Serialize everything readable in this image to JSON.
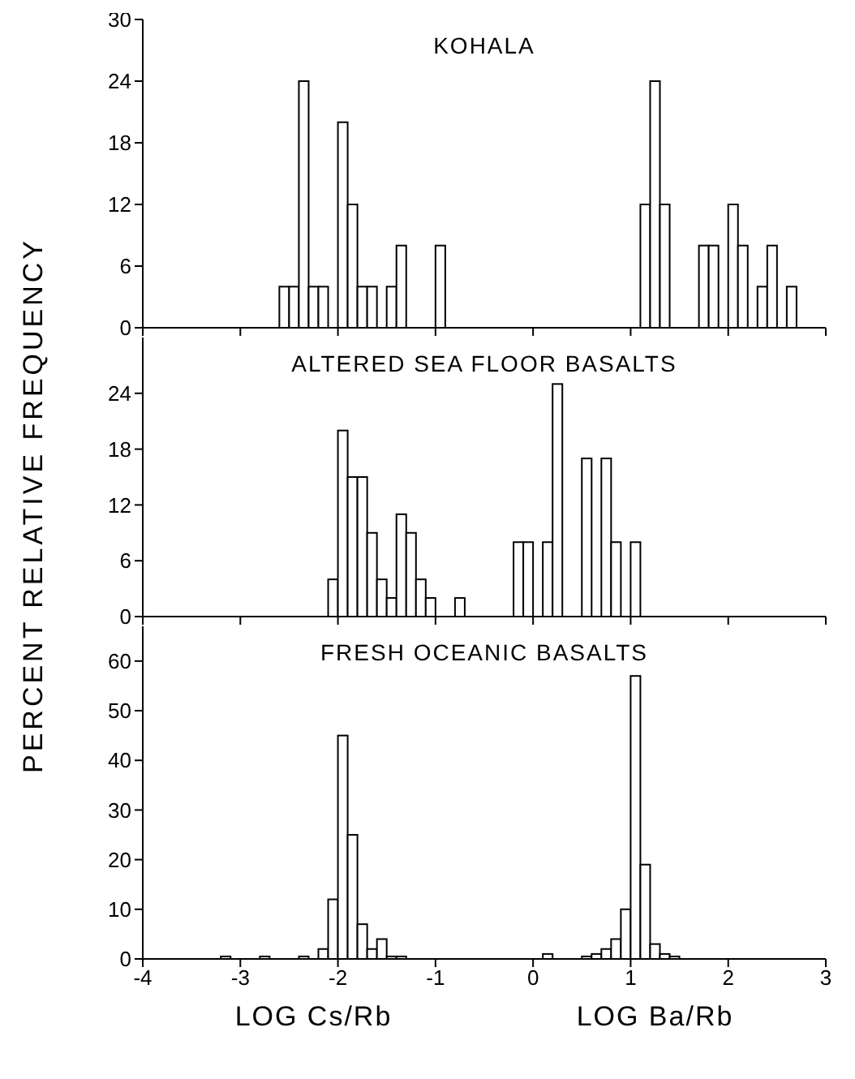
{
  "chart_data": [
    {
      "type": "histogram",
      "title": "KOHALA",
      "color": "#000000",
      "xlim": [
        -4,
        3
      ],
      "xticks": [
        -4,
        -3,
        -2,
        -1,
        0,
        1,
        2,
        3
      ],
      "ylim": [
        0,
        30
      ],
      "yticks": [
        0,
        6,
        12,
        18,
        24,
        30
      ],
      "tick_labels": "y",
      "bins": [
        -2.6,
        -2.5,
        -2.4,
        -2.3,
        -2.2,
        -2.1,
        -2.0,
        -1.9,
        -1.8,
        -1.7,
        -1.6,
        -1.5,
        -1.4,
        -1.3,
        -1.2,
        -1.1,
        -1.0,
        -0.9,
        -0.8,
        -0.7,
        -0.6,
        -0.5,
        -0.4,
        -0.3,
        -0.2,
        -0.1,
        0.0,
        0.1,
        0.2,
        0.3,
        0.4,
        0.5,
        0.6,
        0.7,
        0.8,
        0.9,
        1.0,
        1.1,
        1.2,
        1.3,
        1.4,
        1.5,
        1.6,
        1.7,
        1.8,
        1.9,
        2.0,
        2.1,
        2.2,
        2.3,
        2.4,
        2.5,
        2.6,
        2.7
      ],
      "values": [
        4,
        4,
        24,
        4,
        4,
        0,
        20,
        12,
        4,
        4,
        0,
        4,
        8,
        0,
        0,
        0,
        8,
        0,
        0,
        0,
        0,
        0,
        0,
        0,
        0,
        0,
        0,
        0,
        0,
        0,
        0,
        0,
        0,
        0,
        0,
        0,
        0,
        12,
        24,
        12,
        0,
        0,
        0,
        8,
        8,
        0,
        12,
        8,
        0,
        4,
        8,
        0,
        4
      ]
    },
    {
      "type": "histogram",
      "title": "ALTERED SEA FLOOR BASALTS",
      "ylabel": "PERCENT RELATIVE FREQUENCY",
      "color": "#000000",
      "xlim": [
        -4,
        3
      ],
      "xticks": [
        -4,
        -3,
        -2,
        -1,
        0,
        1,
        2,
        3
      ],
      "ylim": [
        0,
        30
      ],
      "yticks": [
        0,
        6,
        12,
        18,
        24
      ],
      "tick_labels": "y",
      "bins": [
        -2.1,
        -2.0,
        -1.9,
        -1.8,
        -1.7,
        -1.6,
        -1.5,
        -1.4,
        -1.3,
        -1.2,
        -1.1,
        -1.0,
        -0.9,
        -0.8,
        -0.7,
        -0.6,
        -0.5,
        -0.4,
        -0.3,
        -0.2,
        -0.1,
        0.0,
        0.1,
        0.2,
        0.3,
        0.4,
        0.5,
        0.6,
        0.7,
        0.8,
        0.9,
        1.0,
        1.1
      ],
      "values": [
        4,
        20,
        15,
        15,
        9,
        4,
        2,
        11,
        9,
        4,
        2,
        0,
        0,
        2,
        0,
        0,
        0,
        0,
        0,
        8,
        8,
        0,
        8,
        25,
        0,
        0,
        17,
        0,
        17,
        8,
        0,
        8
      ]
    },
    {
      "type": "histogram",
      "title": "FRESH OCEANIC BASALTS",
      "color": "#000000",
      "xlim": [
        -4,
        3
      ],
      "xticks": [
        {
          "value": -4,
          "label": "-4"
        },
        {
          "value": -3,
          "label": "-3"
        },
        {
          "value": -2,
          "label": "-2"
        },
        {
          "value": -1,
          "label": "-1"
        },
        0,
        1,
        2,
        3
      ],
      "ylim": [
        0,
        67
      ],
      "yticks": [
        0,
        10,
        20,
        30,
        40,
        50,
        60
      ],
      "bins": [
        -3.2,
        -3.1,
        -3.0,
        -2.9,
        -2.8,
        -2.7,
        -2.6,
        -2.5,
        -2.4,
        -2.3,
        -2.2,
        -2.1,
        -2.0,
        -1.9,
        -1.8,
        -1.7,
        -1.6,
        -1.5,
        -1.4,
        -1.3,
        -1.2,
        -1.1,
        -1.0,
        -0.9,
        -0.8,
        -0.7,
        -0.6,
        -0.5,
        -0.4,
        -0.3,
        -0.2,
        -0.1,
        0.0,
        0.1,
        0.2,
        0.3,
        0.4,
        0.5,
        0.6,
        0.7,
        0.8,
        0.9,
        1.0,
        1.1,
        1.2,
        1.3,
        1.4,
        1.5
      ],
      "values": [
        0.5,
        0,
        0,
        0,
        0.5,
        0,
        0,
        0,
        0.5,
        0,
        2,
        12,
        45,
        25,
        7,
        2,
        4,
        0.5,
        0.5,
        0,
        0,
        0,
        0,
        0,
        0,
        0,
        0,
        0,
        0,
        0,
        0,
        0,
        0,
        1,
        0,
        0,
        0,
        0.5,
        1,
        2,
        4,
        10,
        57,
        19,
        3,
        1,
        0.5
      ],
      "annotations": [
        "LOG Cs/Rb",
        "LOG Ba/Rb"
      ]
    }
  ]
}
